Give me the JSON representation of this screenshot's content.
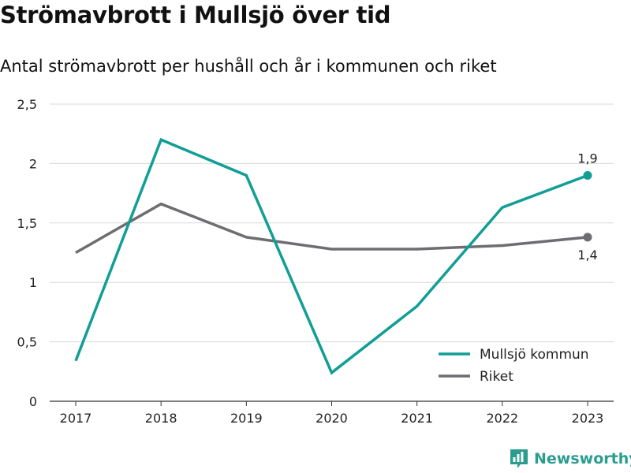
{
  "title": "Strömavbrott i Mullsjö över tid",
  "subtitle": "Antal strömavbrott per hushåll och år i kommunen och riket",
  "brand": {
    "name": "Newsworthy",
    "color": "#2a9d8f",
    "icon": "bar-chart-logo-icon"
  },
  "chart_data": {
    "type": "line",
    "x": [
      "2017",
      "2018",
      "2019",
      "2020",
      "2021",
      "2022",
      "2023"
    ],
    "ylim": [
      0,
      2.5
    ],
    "yticks": [
      0,
      0.5,
      1,
      1.5,
      2,
      2.5
    ],
    "ytick_labels": [
      "0",
      "0,5",
      "1",
      "1,5",
      "2",
      "2,5"
    ],
    "grid": true,
    "legend_position": "bottom-right",
    "series": [
      {
        "name": "Mullsjö kommun",
        "color": "#119e96",
        "values": [
          0.34,
          2.2,
          1.9,
          0.24,
          0.8,
          1.63,
          1.9
        ],
        "end_label": "1,9"
      },
      {
        "name": "Riket",
        "color": "#6e6d72",
        "values": [
          1.25,
          1.66,
          1.38,
          1.28,
          1.28,
          1.31,
          1.38
        ],
        "end_label": "1,4"
      }
    ]
  }
}
